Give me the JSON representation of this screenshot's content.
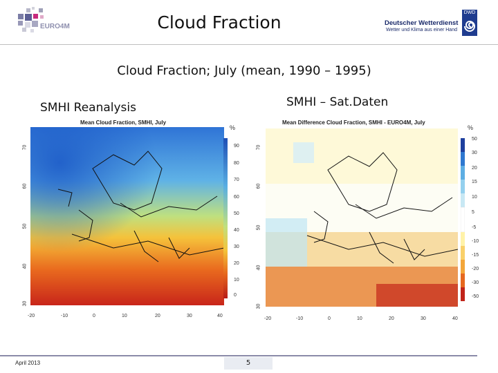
{
  "header": {
    "title": "Cloud Fraction",
    "euro4m_logo_text": "EURO4M",
    "dwd": {
      "name": "Deutscher Wetterdienst",
      "tagline": "Wetter und Klima aus einer Hand",
      "badge": "DWD"
    }
  },
  "subtitle": "Cloud Fraction; July (mean, 1990 – 1995)",
  "left_panel": {
    "label": "SMHI Reanalysis",
    "map_title": "Mean Cloud Fraction, SMHI, July",
    "unit": "%",
    "colorbar_ticks": [
      "90",
      "80",
      "70",
      "60",
      "50",
      "40",
      "30",
      "20",
      "10",
      "0"
    ],
    "lat_ticks": [
      "70",
      "60",
      "50",
      "40",
      "30"
    ],
    "lon_ticks": [
      "-20",
      "-10",
      "0",
      "10",
      "20",
      "30",
      "40"
    ]
  },
  "right_panel": {
    "label": "SMHI – Sat.Daten",
    "map_title": "Mean Difference Cloud Fraction, SMHI - EURO4M, July",
    "unit": "%",
    "colorbar_ticks": [
      "50",
      "30",
      "20",
      "15",
      "10",
      "5",
      "-5",
      "-10",
      "-15",
      "-20",
      "-30",
      "-50"
    ],
    "lat_ticks": [
      "70",
      "60",
      "50",
      "40",
      "30"
    ],
    "lon_ticks": [
      "-20",
      "-10",
      "0",
      "10",
      "20",
      "30",
      "40"
    ]
  },
  "footer": {
    "date": "April 2013",
    "page": "5"
  },
  "colors": {
    "rule": "#bfbfbf",
    "footer_rule": "#8a8aa8"
  }
}
